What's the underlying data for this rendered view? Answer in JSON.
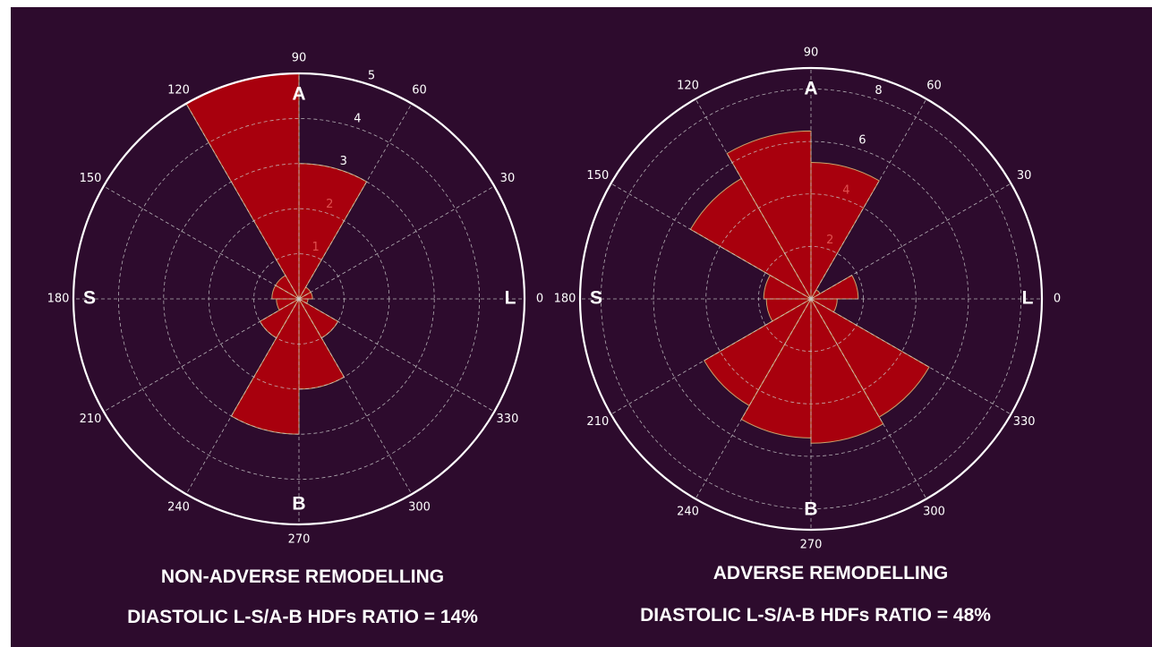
{
  "chart_data": [
    {
      "type": "polar-bar",
      "title": "NON-ADVERSE REMODELLING",
      "subtitle": "DIASTOLIC L-S/A-B HDFs RATIO = 14%",
      "angular_ticks": [
        "0",
        "30",
        "60",
        "90",
        "120",
        "150",
        "180",
        "210",
        "240",
        "270",
        "300",
        "330"
      ],
      "radial_ticks": [
        1,
        2,
        3,
        4,
        5
      ],
      "rmax": 5,
      "direction_labels": {
        "right": "L",
        "top": "A",
        "left": "S",
        "bottom": "B"
      },
      "sector_width_deg": 30,
      "sectors": [
        {
          "start": 0,
          "value": 0.3
        },
        {
          "start": 30,
          "value": 0.3
        },
        {
          "start": 60,
          "value": 3.0
        },
        {
          "start": 90,
          "value": 5.0
        },
        {
          "start": 120,
          "value": 0.6
        },
        {
          "start": 150,
          "value": 0.6
        },
        {
          "start": 180,
          "value": 0.5
        },
        {
          "start": 210,
          "value": 1.0
        },
        {
          "start": 240,
          "value": 3.0
        },
        {
          "start": 270,
          "value": 2.0
        },
        {
          "start": 300,
          "value": 1.0
        },
        {
          "start": 330,
          "value": 0.2
        }
      ]
    },
    {
      "type": "polar-bar",
      "title": "ADVERSE REMODELLING",
      "subtitle": "DIASTOLIC L-S/A-B HDFs RATIO = 48%",
      "angular_ticks": [
        "0",
        "30",
        "60",
        "90",
        "120",
        "150",
        "180",
        "210",
        "240",
        "270",
        "300",
        "330"
      ],
      "radial_ticks": [
        2,
        4,
        6,
        8
      ],
      "rmax": 8.8,
      "direction_labels": {
        "right": "L",
        "top": "A",
        "left": "S",
        "bottom": "B"
      },
      "sector_width_deg": 30,
      "sectors": [
        {
          "start": 0,
          "value": 1.8
        },
        {
          "start": 30,
          "value": 0.4
        },
        {
          "start": 60,
          "value": 5.2
        },
        {
          "start": 90,
          "value": 6.4
        },
        {
          "start": 120,
          "value": 5.3
        },
        {
          "start": 150,
          "value": 1.8
        },
        {
          "start": 180,
          "value": 1.7
        },
        {
          "start": 210,
          "value": 4.7
        },
        {
          "start": 240,
          "value": 5.3
        },
        {
          "start": 270,
          "value": 5.5
        },
        {
          "start": 300,
          "value": 5.2
        },
        {
          "start": 330,
          "value": 1.0
        }
      ]
    }
  ],
  "colors": {
    "background": "#2d0b2d",
    "bar_fill": "#a8000d",
    "bar_edge": "#c9a36a",
    "grid": "#c9c9c9",
    "outline": "#ffffff",
    "text": "#ffffff",
    "inner_tick_label": "#e05050"
  }
}
